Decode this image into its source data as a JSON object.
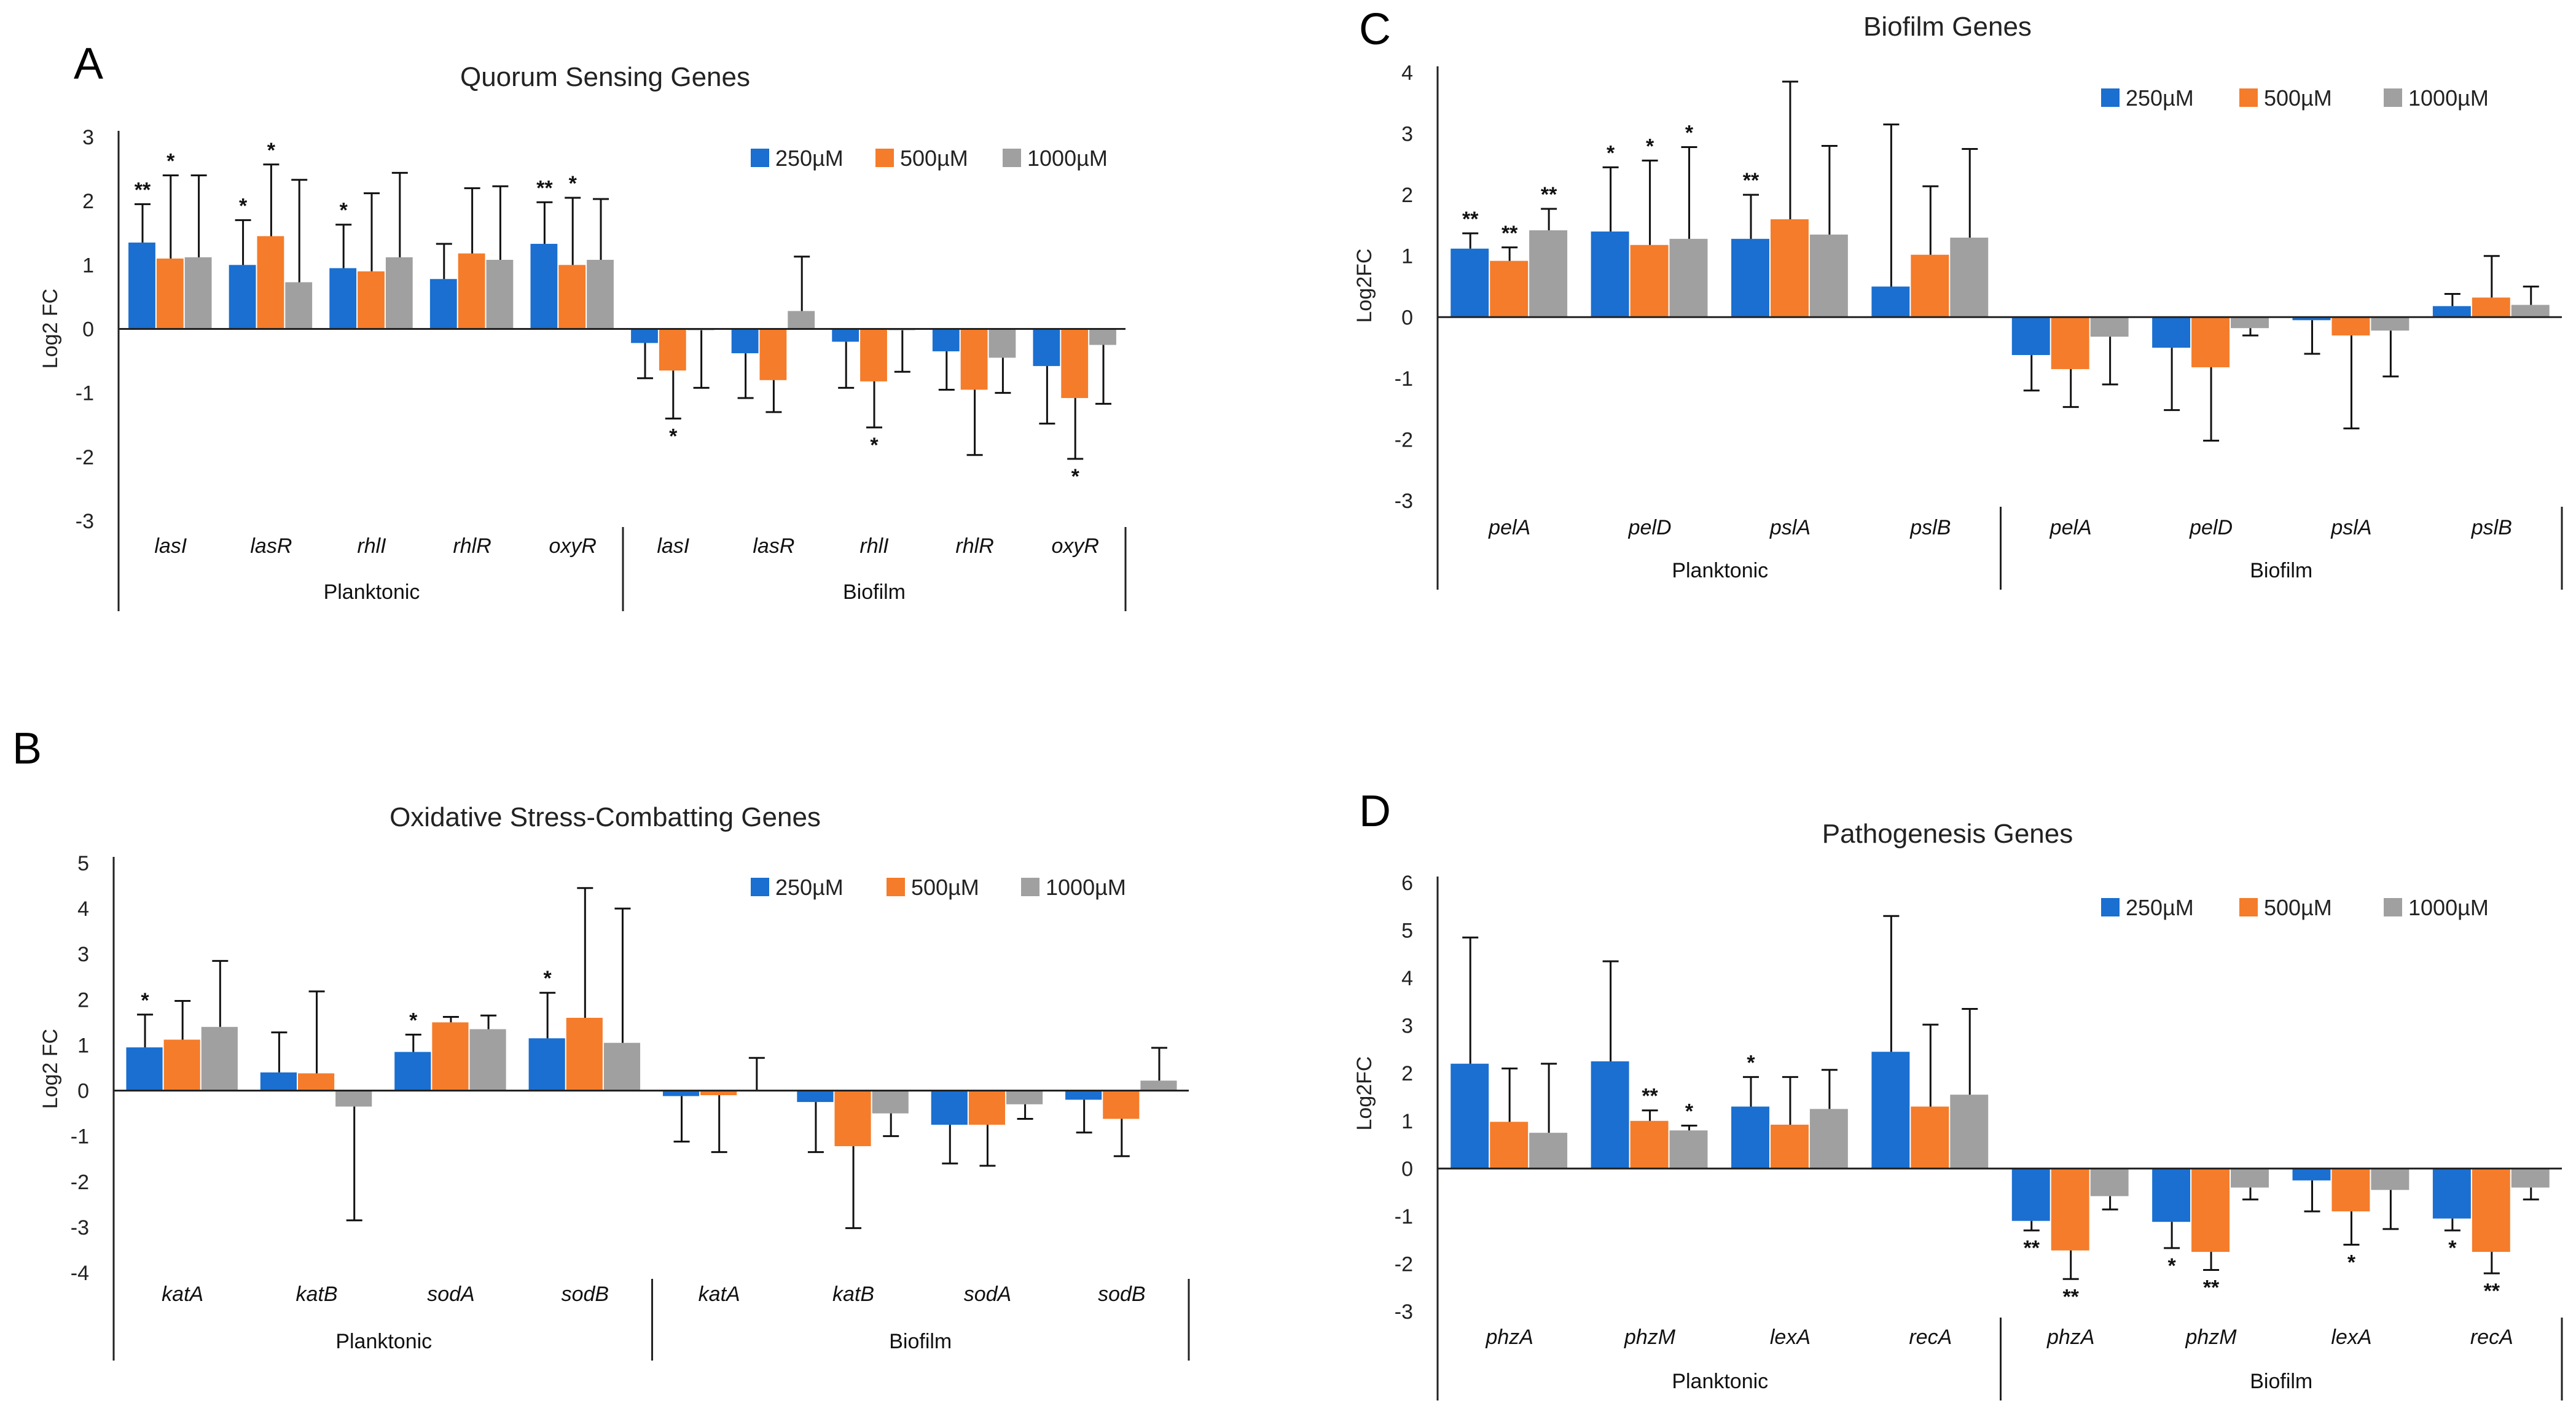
{
  "figure_labels": [
    "A",
    "B",
    "C",
    "D"
  ],
  "chart_data": [
    {
      "panel": "A",
      "type": "bar",
      "title": "Quorum Sensing Genes",
      "ylabel": "Log2 FC",
      "ylim": [
        -3,
        3
      ],
      "yticks": [
        3,
        2,
        1,
        0,
        -1,
        -2,
        -3
      ],
      "categories": [
        "lasI",
        "lasR",
        "rhlI",
        "rhlR",
        "oxyR",
        "lasI",
        "lasR",
        "rhlI",
        "rhlR",
        "oxyR"
      ],
      "groups": [
        {
          "label": "Planktonic",
          "count": 5
        },
        {
          "label": "Biofilm",
          "count": 5
        }
      ],
      "colors": [
        "#1a6fd0",
        "#f57c2a",
        "#a0a0a0"
      ],
      "series": [
        {
          "name": "250µM",
          "values": [
            1.35,
            1.0,
            0.95,
            0.78,
            1.33,
            -0.22,
            -0.38,
            -0.2,
            -0.35,
            -0.58
          ],
          "errors": [
            0.6,
            0.7,
            0.68,
            0.55,
            0.65,
            0.55,
            0.7,
            0.72,
            0.6,
            0.9
          ],
          "stars": [
            "**",
            "*",
            "*",
            "",
            "**",
            "",
            "",
            "",
            "",
            ""
          ]
        },
        {
          "name": "500µM",
          "values": [
            1.1,
            1.45,
            0.9,
            1.18,
            1.0,
            -0.65,
            -0.8,
            -0.82,
            -0.95,
            -1.08
          ],
          "errors": [
            1.3,
            1.12,
            1.22,
            1.02,
            1.05,
            0.75,
            0.5,
            0.72,
            1.02,
            0.95
          ],
          "stars": [
            "*",
            "*",
            "",
            "",
            "*",
            "*",
            "",
            "*",
            "",
            "*"
          ]
        },
        {
          "name": "1000µM",
          "values": [
            1.12,
            0.73,
            1.12,
            1.08,
            1.08,
            -0.02,
            0.28,
            -0.02,
            -0.45,
            -0.25
          ],
          "errors": [
            1.28,
            1.6,
            1.32,
            1.15,
            0.95,
            0.9,
            0.85,
            0.65,
            0.55,
            0.92
          ],
          "stars": [
            "",
            "",
            "",
            "",
            "",
            "",
            "",
            "",
            "",
            ""
          ]
        }
      ],
      "legend_position": "top-right"
    },
    {
      "panel": "B",
      "type": "bar",
      "title": "Oxidative Stress-Combatting Genes",
      "ylabel": "Log2 FC",
      "ylim": [
        -4,
        5
      ],
      "yticks": [
        5,
        4,
        3,
        2,
        1,
        0,
        -1,
        -2,
        -3,
        -4
      ],
      "categories": [
        "katA",
        "katB",
        "sodA",
        "sodB",
        "katA",
        "katB",
        "sodA",
        "sodB"
      ],
      "groups": [
        {
          "label": "Planktonic",
          "count": 4
        },
        {
          "label": "Biofilm",
          "count": 4
        }
      ],
      "colors": [
        "#1a6fd0",
        "#f57c2a",
        "#a0a0a0"
      ],
      "series": [
        {
          "name": "250µM",
          "values": [
            0.95,
            0.4,
            0.85,
            1.15,
            -0.12,
            -0.25,
            -0.75,
            -0.2
          ],
          "errors": [
            0.72,
            0.88,
            0.38,
            1.0,
            1.0,
            1.1,
            0.85,
            0.72
          ],
          "stars": [
            "*",
            "",
            "*",
            "*",
            "",
            "",
            "",
            ""
          ]
        },
        {
          "name": "500µM",
          "values": [
            1.12,
            0.38,
            1.5,
            1.6,
            -0.1,
            -1.22,
            -0.75,
            -0.62
          ],
          "errors": [
            0.85,
            1.8,
            0.12,
            2.85,
            1.25,
            1.8,
            0.9,
            0.82
          ],
          "stars": [
            "",
            "",
            "",
            "",
            "",
            "",
            "",
            ""
          ]
        },
        {
          "name": "1000µM",
          "values": [
            1.4,
            -0.35,
            1.35,
            1.05,
            0.0,
            -0.5,
            -0.3,
            0.22
          ],
          "errors": [
            1.45,
            2.5,
            0.3,
            2.95,
            0.72,
            0.5,
            0.32,
            0.72
          ],
          "stars": [
            "",
            "",
            "",
            "",
            "",
            "",
            "",
            ""
          ]
        }
      ],
      "legend_position": "top-right"
    },
    {
      "panel": "C",
      "type": "bar",
      "title": "Biofilm Genes",
      "ylabel": "Log2FC",
      "ylim": [
        -3,
        4
      ],
      "yticks": [
        4,
        3,
        2,
        1,
        0,
        -1,
        -2,
        -3
      ],
      "categories": [
        "pelA",
        "pelD",
        "pslA",
        "pslB",
        "pelA",
        "pelD",
        "pslA",
        "pslB"
      ],
      "groups": [
        {
          "label": "Planktonic",
          "count": 4
        },
        {
          "label": "Biofilm",
          "count": 4
        }
      ],
      "colors": [
        "#1a6fd0",
        "#f57c2a",
        "#a0a0a0"
      ],
      "series": [
        {
          "name": "250µM",
          "values": [
            1.12,
            1.4,
            1.28,
            0.5,
            -0.62,
            -0.5,
            -0.05,
            0.18
          ],
          "errors": [
            0.25,
            1.05,
            0.72,
            2.65,
            0.58,
            1.02,
            0.55,
            0.2
          ],
          "stars": [
            "**",
            "*",
            "**",
            "",
            "",
            "",
            "",
            ""
          ]
        },
        {
          "name": "500µM",
          "values": [
            0.92,
            1.18,
            1.6,
            1.02,
            -0.85,
            -0.82,
            -0.3,
            0.32
          ],
          "errors": [
            0.22,
            1.38,
            2.25,
            1.12,
            0.62,
            1.2,
            1.52,
            0.68
          ],
          "stars": [
            "**",
            "*",
            "",
            "",
            "",
            "",
            "",
            ""
          ]
        },
        {
          "name": "1000µM",
          "values": [
            1.42,
            1.28,
            1.35,
            1.3,
            -0.32,
            -0.18,
            -0.22,
            0.2
          ],
          "errors": [
            0.35,
            1.5,
            1.45,
            1.45,
            0.78,
            0.12,
            0.75,
            0.3
          ],
          "stars": [
            "**",
            "*",
            "",
            "",
            "",
            "",
            "",
            ""
          ]
        }
      ],
      "legend_position": "top-right"
    },
    {
      "panel": "D",
      "type": "bar",
      "title": "Pathogenesis Genes",
      "ylabel": "Log2FC",
      "ylim": [
        -3,
        6
      ],
      "yticks": [
        6,
        5,
        4,
        3,
        2,
        1,
        0,
        -1,
        -2,
        -3
      ],
      "categories": [
        "phzA",
        "phzM",
        "lexA",
        "recA",
        "phzA",
        "phzM",
        "lexA",
        "recA"
      ],
      "groups": [
        {
          "label": "Planktonic",
          "count": 4
        },
        {
          "label": "Biofilm",
          "count": 4
        }
      ],
      "colors": [
        "#1a6fd0",
        "#f57c2a",
        "#a0a0a0"
      ],
      "series": [
        {
          "name": "250µM",
          "values": [
            2.2,
            2.25,
            1.3,
            2.45,
            -1.1,
            -1.12,
            -0.25,
            -1.05
          ],
          "errors": [
            2.65,
            2.1,
            0.62,
            2.85,
            0.2,
            0.55,
            0.65,
            0.25
          ],
          "stars": [
            "",
            "",
            "*",
            "",
            "**",
            "*",
            "",
            "*"
          ]
        },
        {
          "name": "500µM",
          "values": [
            0.98,
            1.0,
            0.92,
            1.3,
            -1.72,
            -1.75,
            -0.9,
            -1.75
          ],
          "errors": [
            1.12,
            0.22,
            1.0,
            1.72,
            0.6,
            0.38,
            0.7,
            0.45
          ],
          "stars": [
            "",
            "**",
            "",
            "",
            "**",
            "**",
            "*",
            "**"
          ]
        },
        {
          "name": "1000µM",
          "values": [
            0.75,
            0.8,
            1.25,
            1.55,
            -0.58,
            -0.4,
            -0.45,
            -0.4
          ],
          "errors": [
            1.45,
            0.1,
            0.82,
            1.8,
            0.28,
            0.25,
            0.82,
            0.25
          ],
          "stars": [
            "",
            "*",
            "",
            "",
            "",
            "",
            "",
            ""
          ]
        }
      ],
      "legend_position": "top-right"
    }
  ]
}
